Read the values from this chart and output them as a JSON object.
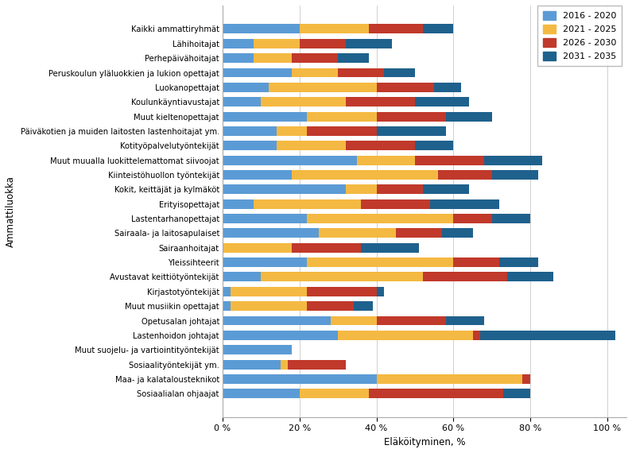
{
  "categories": [
    "Kaikki ammattiryhmät",
    "Lähihoitajat",
    "Perhepäivähoitajat",
    "Peruskoulun yläluokkien ja lukion opettajat",
    "Luokanopettajat",
    "Koulunkäyntiavustajat",
    "Muut kieltenopettajat",
    "Päiväkotien ja muiden laitosten lastenhoitajat ym.",
    "Kotityöpalvelutyöntekijät",
    "Muut muualla luokittelemattomat siivoojat",
    "Kiinteistöhuollon työntekijät",
    "Kokit, keittäjät ja kylmäköt",
    "Erityisopettajat",
    "Lastentarhanopettajat",
    "Sairaala- ja laitosapulaiset",
    "Sairaanhoitajat",
    "Yleissihteerit",
    "Avustavat keittiötyöntekijät",
    "Kirjastotyöntekijät",
    "Muut musiikin opettajat",
    "Opetusalan johtajat",
    "Lastenhoidon johtajat",
    "Muut suojelu- ja vartiointityöntekijät",
    "Sosiaalityöntekijät ym.",
    "Maa- ja kalatalousteknikot",
    "Sosiaalialan ohjaajat"
  ],
  "series": {
    "2016 - 2020": [
      20,
      8,
      8,
      18,
      12,
      10,
      22,
      14,
      14,
      35,
      18,
      32,
      8,
      22,
      25,
      0,
      22,
      10,
      2,
      2,
      28,
      30,
      18,
      15,
      40,
      20
    ],
    "2021 - 2025": [
      18,
      12,
      10,
      12,
      28,
      22,
      18,
      8,
      18,
      15,
      38,
      8,
      28,
      38,
      20,
      18,
      38,
      42,
      20,
      20,
      12,
      35,
      0,
      2,
      38,
      18
    ],
    "2026 - 2030": [
      14,
      12,
      12,
      12,
      15,
      18,
      18,
      18,
      18,
      18,
      14,
      12,
      18,
      10,
      12,
      18,
      12,
      22,
      18,
      12,
      18,
      2,
      0,
      15,
      2,
      35
    ],
    "2031 - 2035": [
      8,
      12,
      8,
      8,
      7,
      14,
      12,
      18,
      10,
      15,
      12,
      12,
      18,
      10,
      8,
      15,
      10,
      12,
      2,
      5,
      10,
      35,
      0,
      0,
      0,
      7
    ]
  },
  "colors": {
    "2016 - 2020": "#5B9BD5",
    "2021 - 2025": "#F4B942",
    "2026 - 2030": "#C0392B",
    "2031 - 2035": "#1F618D"
  },
  "xlabel": "Eläköityminen, %",
  "ylabel": "Ammattiluokka",
  "xlim": [
    0,
    105
  ],
  "xtick_vals": [
    0,
    20,
    40,
    60,
    80,
    100
  ],
  "xtick_labels": [
    "0 %",
    "20 %",
    "40 %",
    "60 %",
    "80 %",
    "100 %"
  ],
  "background_color": "#FFFFFF",
  "grid_color": "#D0D0D0",
  "legend_labels": [
    "2016 - 2020",
    "2021 - 2025",
    "2026 - 2030",
    "2031 - 2035"
  ]
}
